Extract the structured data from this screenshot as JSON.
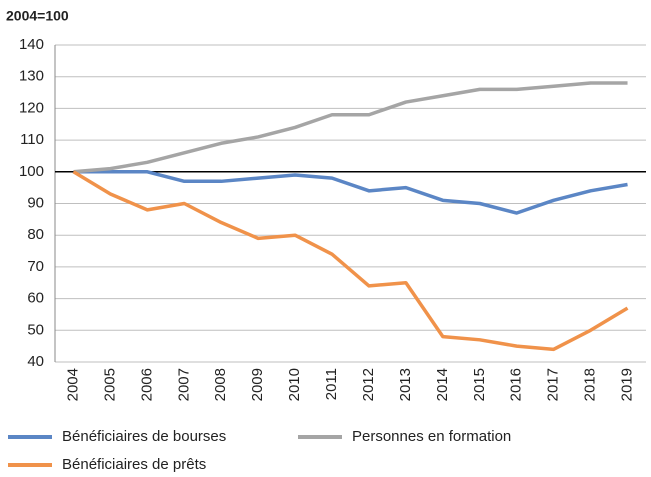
{
  "chart_data": {
    "type": "line",
    "y_label": "2004=100",
    "categories": [
      "2004",
      "2005",
      "2006",
      "2007",
      "2008",
      "2009",
      "2010",
      "2011",
      "2012",
      "2013",
      "2014",
      "2015",
      "2016",
      "2017",
      "2018",
      "2019"
    ],
    "series": [
      {
        "name": "Bénéficiaires de bourses",
        "color": "#5b86c5",
        "values": [
          100,
          100,
          100,
          97,
          97,
          98,
          99,
          98,
          94,
          95,
          91,
          90,
          87,
          91,
          94,
          96
        ]
      },
      {
        "name": "Personnes en formation",
        "color": "#a5a5a5",
        "values": [
          100,
          101,
          103,
          106,
          109,
          111,
          114,
          118,
          118,
          122,
          124,
          126,
          126,
          127,
          128,
          128
        ]
      },
      {
        "name": "Bénéficiaires de prêts",
        "color": "#f0924a",
        "values": [
          100,
          93,
          88,
          90,
          84,
          79,
          80,
          74,
          64,
          65,
          48,
          47,
          45,
          44,
          50,
          57
        ]
      }
    ],
    "ylim": [
      40,
      140
    ],
    "yticks": [
      40,
      50,
      60,
      70,
      80,
      90,
      100,
      110,
      120,
      130,
      140
    ],
    "grid": true,
    "baseline": 100
  }
}
